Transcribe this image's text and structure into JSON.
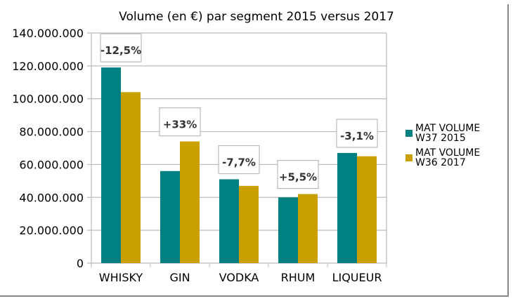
{
  "chart_data": {
    "type": "bar",
    "title": "Volume (en €) par segment 2015 versus 2017",
    "categories": [
      "WHISKY",
      "GIN",
      "VODKA",
      "RHUM",
      "LIQUEUR"
    ],
    "series": [
      {
        "name": "MAT VOLUME W37 2015",
        "color": "#008080",
        "values": [
          119000000,
          56000000,
          51000000,
          40000000,
          67000000
        ]
      },
      {
        "name": "MAT VOLUME W36 2017",
        "color": "#C8A000",
        "values": [
          104000000,
          74000000,
          47000000,
          42000000,
          65000000
        ]
      }
    ],
    "annotations": [
      "-12,5%",
      "+33%",
      "-7,7%",
      "+5,5%",
      "-3,1%"
    ],
    "ylim": [
      0,
      140000000
    ],
    "yticks": [
      "0",
      "20.000.000",
      "40.000.000",
      "60.000.000",
      "80.000.000",
      "100.000.000",
      "120.000.000",
      "140.000.000"
    ],
    "grid": true,
    "legend": "right"
  }
}
